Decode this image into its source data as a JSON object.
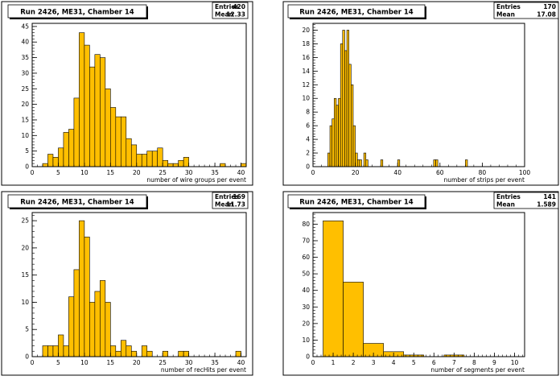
{
  "chart_data": [
    {
      "type": "bar",
      "title": "Run 2426, ME31, Chamber 14",
      "xlabel": "number of wire groups per event",
      "ylabel": "",
      "xlim": [
        0,
        41
      ],
      "ylim": [
        0,
        46
      ],
      "bin_width": 1,
      "xticks": [
        0,
        5,
        10,
        15,
        20,
        25,
        30,
        35,
        40
      ],
      "yticks": [
        0,
        5,
        10,
        15,
        20,
        25,
        30,
        35,
        40,
        45
      ],
      "stats": {
        "entries_label": "Entries",
        "entries": "420",
        "mean_label": "Mean",
        "mean": "12.33"
      },
      "bins": [
        {
          "x": 2,
          "y": 1
        },
        {
          "x": 3,
          "y": 4
        },
        {
          "x": 4,
          "y": 3
        },
        {
          "x": 5,
          "y": 6
        },
        {
          "x": 6,
          "y": 11
        },
        {
          "x": 7,
          "y": 12
        },
        {
          "x": 8,
          "y": 22
        },
        {
          "x": 9,
          "y": 43
        },
        {
          "x": 10,
          "y": 39
        },
        {
          "x": 11,
          "y": 32
        },
        {
          "x": 12,
          "y": 36
        },
        {
          "x": 13,
          "y": 35
        },
        {
          "x": 14,
          "y": 25
        },
        {
          "x": 15,
          "y": 19
        },
        {
          "x": 16,
          "y": 16
        },
        {
          "x": 17,
          "y": 16
        },
        {
          "x": 18,
          "y": 9
        },
        {
          "x": 19,
          "y": 7
        },
        {
          "x": 20,
          "y": 4
        },
        {
          "x": 21,
          "y": 4
        },
        {
          "x": 22,
          "y": 5
        },
        {
          "x": 23,
          "y": 5
        },
        {
          "x": 24,
          "y": 6
        },
        {
          "x": 25,
          "y": 2
        },
        {
          "x": 26,
          "y": 1
        },
        {
          "x": 27,
          "y": 1
        },
        {
          "x": 28,
          "y": 2
        },
        {
          "x": 29,
          "y": 3
        },
        {
          "x": 36,
          "y": 1
        },
        {
          "x": 40,
          "y": 1
        }
      ]
    },
    {
      "type": "bar",
      "title": "Run 2426, ME31, Chamber 14",
      "xlabel": "number of strips per event",
      "ylabel": "",
      "xlim": [
        0,
        100
      ],
      "ylim": [
        0,
        21
      ],
      "bin_width": 1,
      "xticks": [
        0,
        20,
        40,
        60,
        80,
        100
      ],
      "yticks": [
        0,
        2,
        4,
        6,
        8,
        10,
        12,
        14,
        16,
        18,
        20
      ],
      "stats": {
        "entries_label": "Entries",
        "entries": "170",
        "mean_label": "Mean",
        "mean": "17.08"
      },
      "bins": [
        {
          "x": 7,
          "y": 2
        },
        {
          "x": 8,
          "y": 6
        },
        {
          "x": 9,
          "y": 7
        },
        {
          "x": 10,
          "y": 10
        },
        {
          "x": 11,
          "y": 9
        },
        {
          "x": 12,
          "y": 10
        },
        {
          "x": 13,
          "y": 18
        },
        {
          "x": 14,
          "y": 20
        },
        {
          "x": 15,
          "y": 17
        },
        {
          "x": 16,
          "y": 20
        },
        {
          "x": 17,
          "y": 15
        },
        {
          "x": 18,
          "y": 12
        },
        {
          "x": 19,
          "y": 6
        },
        {
          "x": 20,
          "y": 2
        },
        {
          "x": 21,
          "y": 1
        },
        {
          "x": 22,
          "y": 1
        },
        {
          "x": 24,
          "y": 2
        },
        {
          "x": 25,
          "y": 1
        },
        {
          "x": 32,
          "y": 1
        },
        {
          "x": 40,
          "y": 1
        },
        {
          "x": 57,
          "y": 1
        },
        {
          "x": 58,
          "y": 1
        },
        {
          "x": 72,
          "y": 1
        }
      ]
    },
    {
      "type": "bar",
      "title": "Run 2426, ME31, Chamber 14",
      "xlabel": "number of recHits per event",
      "ylabel": "",
      "xlim": [
        0,
        41
      ],
      "ylim": [
        0,
        26.5
      ],
      "bin_width": 1,
      "xticks": [
        0,
        5,
        10,
        15,
        20,
        25,
        30,
        35,
        40
      ],
      "yticks": [
        0,
        5,
        10,
        15,
        20,
        25
      ],
      "stats": {
        "entries_label": "Entries",
        "entries": "169",
        "mean_label": "Mean",
        "mean": "11.73"
      },
      "bins": [
        {
          "x": 2,
          "y": 2
        },
        {
          "x": 3,
          "y": 2
        },
        {
          "x": 4,
          "y": 2
        },
        {
          "x": 5,
          "y": 4
        },
        {
          "x": 6,
          "y": 2
        },
        {
          "x": 7,
          "y": 11
        },
        {
          "x": 8,
          "y": 16
        },
        {
          "x": 9,
          "y": 25
        },
        {
          "x": 10,
          "y": 22
        },
        {
          "x": 11,
          "y": 10
        },
        {
          "x": 12,
          "y": 12
        },
        {
          "x": 13,
          "y": 14
        },
        {
          "x": 14,
          "y": 10
        },
        {
          "x": 15,
          "y": 2
        },
        {
          "x": 16,
          "y": 1
        },
        {
          "x": 17,
          "y": 3
        },
        {
          "x": 18,
          "y": 2
        },
        {
          "x": 19,
          "y": 1
        },
        {
          "x": 21,
          "y": 2
        },
        {
          "x": 22,
          "y": 1
        },
        {
          "x": 25,
          "y": 1
        },
        {
          "x": 28,
          "y": 1
        },
        {
          "x": 29,
          "y": 1
        },
        {
          "x": 39,
          "y": 1
        }
      ]
    },
    {
      "type": "bar",
      "title": "Run 2426, ME31, Chamber 14",
      "xlabel": "number of segments per event",
      "ylabel": "",
      "xlim": [
        0,
        10.5
      ],
      "ylim": [
        0,
        87
      ],
      "bin_width": 1,
      "xticks": [
        0,
        1,
        2,
        3,
        4,
        5,
        6,
        7,
        8,
        9,
        10
      ],
      "yticks": [
        0,
        10,
        20,
        30,
        40,
        50,
        60,
        70,
        80
      ],
      "stats": {
        "entries_label": "Entries",
        "entries": "141",
        "mean_label": "Mean",
        "mean": "1.589"
      },
      "bins": [
        {
          "x": 0.5,
          "y": 82
        },
        {
          "x": 1.5,
          "y": 45
        },
        {
          "x": 2.5,
          "y": 8
        },
        {
          "x": 3.5,
          "y": 3
        },
        {
          "x": 4.5,
          "y": 1
        },
        {
          "x": 6.5,
          "y": 1
        }
      ]
    }
  ],
  "colors": {
    "fill": "#FFBF00",
    "stroke": "#000000",
    "frame": "#000000",
    "background": "#FFFFFF"
  }
}
